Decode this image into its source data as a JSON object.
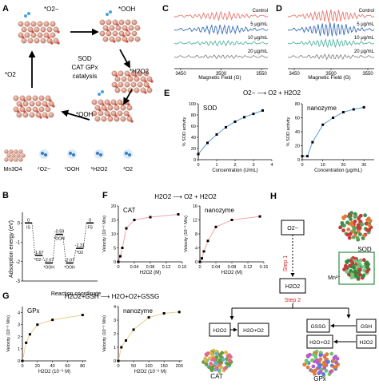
{
  "panels": {
    "A": {
      "letter": "A",
      "labels": [
        "*O2−",
        "*OOH",
        "*H2O2",
        "*OOH",
        "*O2"
      ],
      "center_lines": [
        "SOD",
        "CAT GPx",
        "catalysis"
      ],
      "legend": [
        "Mn3O4",
        "*O2−",
        "*OOH",
        "*H2O2",
        "*O2"
      ]
    },
    "B": {
      "letter": "B",
      "ylabel": "Adsorption energy (eV)",
      "xlabel": "Reaction coordinate",
      "states": [
        {
          "name": "IS",
          "value": "0",
          "energy": 0
        },
        {
          "name": "*O2−",
          "value": "-1.67",
          "energy": -1.67
        },
        {
          "name": "*OOH",
          "value": "-2.07",
          "energy": -2.07
        },
        {
          "name": "*OOH",
          "value": "-0.59",
          "energy": -0.59
        },
        {
          "name": "*OOH",
          "value": "-2.07",
          "energy": -2.07
        },
        {
          "name": "*O2",
          "value": "-1.31",
          "energy": -1.31
        },
        {
          "name": "FS",
          "value": "0",
          "energy": 0
        }
      ],
      "yticks": [
        "0",
        "-1",
        "-2",
        "-3"
      ]
    },
    "C": {
      "letter": "C",
      "traces": [
        {
          "label": "Control",
          "color": "#e8776e"
        },
        {
          "label": "5 μg/mL",
          "color": "#3b6fb6"
        },
        {
          "label": "10 μg/mL",
          "color": "#55b4a0"
        },
        {
          "label": "20 μg/mL",
          "color": "#8a8a8a"
        }
      ],
      "xticks": [
        "3450",
        "3500",
        "3550"
      ],
      "xlabel": "Magnetic Field (G)"
    },
    "D": {
      "letter": "D",
      "traces": [
        {
          "label": "Control",
          "color": "#e8776e"
        },
        {
          "label": "5 μg/mL",
          "color": "#3b6fb6"
        },
        {
          "label": "10 μg/mL",
          "color": "#55b4a0"
        },
        {
          "label": "20 μg/mL",
          "color": "#8a8a8a"
        }
      ],
      "xticks": [
        "3450",
        "3500",
        "3550"
      ],
      "xlabel": "Magnetic Field (G)"
    },
    "E": {
      "letter": "E",
      "reaction": "O2−  ⟶  O2 + H2O2",
      "left_title": "SOD",
      "right_title": "nanozyme",
      "ylabel": "% SOD activity",
      "xlabel": "Concentration (U/mL)",
      "xlabel2": "Concentration (μg/mL)"
    },
    "F": {
      "letter": "F",
      "reaction": "H2O2  ⟶  O2 + H2O2",
      "left_title": "CAT",
      "right_title": "nanozyme",
      "ylabel": "Velocity (10⁻⁶ M/s)",
      "xlabel": "H2O2 (M)"
    },
    "G": {
      "letter": "G",
      "reaction": "H2O2+GSH  ⟶  H2O+O2+GSSG",
      "left_title": "GPx",
      "right_title": "nanozyme",
      "ylabel": "Velocity (10⁻⁶ M/s)",
      "xlabel": "H2O2 (10⁻⁶ M)"
    },
    "H": {
      "letter": "H",
      "top_box": "O2−",
      "step1": "Step 1",
      "middle_box": "H2O2",
      "step2": "Step 2",
      "sod_label": "SOD",
      "mn_label": "Mn²⁺",
      "left_box_a": "H2O2",
      "left_box_b": "H2O+O2",
      "right_box_a": "GSSG",
      "right_box_b": "GSH",
      "right_box_c": "H2O+O2",
      "right_box_d": "H2O2",
      "cat_label": "CAT",
      "gpx_label": "GPx"
    }
  },
  "chart_data": [
    {
      "type": "scatter",
      "title": "SOD",
      "xlabel": "Concentration (U/mL)",
      "ylabel": "% SOD activity",
      "x": [
        0,
        0.5,
        1,
        1.5,
        2,
        2.5,
        3,
        3.5
      ],
      "y": [
        10,
        30,
        45,
        58,
        68,
        76,
        82,
        88
      ],
      "xlim": [
        0,
        4
      ],
      "ylim": [
        0,
        100
      ],
      "xticks": [
        0,
        1,
        2,
        3,
        4
      ],
      "yticks": [
        0,
        20,
        40,
        60,
        80,
        100
      ]
    },
    {
      "type": "scatter",
      "title": "nanozyme",
      "xlabel": "Concentration (μg/mL)",
      "ylabel": "% SOD activity",
      "x": [
        0,
        2.5,
        5,
        10,
        15,
        20,
        25,
        30
      ],
      "y": [
        5,
        5,
        25,
        50,
        60,
        68,
        72,
        75
      ],
      "xlim": [
        0,
        35
      ],
      "ylim": [
        0,
        80
      ],
      "xticks": [
        0,
        10,
        20,
        30
      ],
      "yticks": [
        0,
        20,
        40,
        60,
        80
      ]
    },
    {
      "type": "scatter",
      "title": "CAT",
      "xlabel": "H2O2 (M)",
      "ylabel": "Velocity (10⁻⁶ M/s)",
      "x": [
        0,
        0.005,
        0.01,
        0.02,
        0.04,
        0.08,
        0.15
      ],
      "y": [
        0,
        2,
        5,
        12,
        15,
        16,
        17
      ],
      "xlim": [
        0,
        0.16
      ],
      "ylim": [
        0,
        20
      ],
      "xticks": [
        0,
        0.04,
        0.08,
        0.12,
        0.16
      ],
      "yticks": [
        0,
        5,
        10,
        15,
        20
      ]
    },
    {
      "type": "scatter",
      "title": "nanozyme",
      "xlabel": "H2O2 (M)",
      "ylabel": "Velocity (10⁻⁶ M/s)",
      "x": [
        0,
        0.005,
        0.01,
        0.02,
        0.04,
        0.08,
        0.15
      ],
      "y": [
        0,
        1,
        3,
        6,
        10,
        12,
        13
      ],
      "xlim": [
        0,
        0.16
      ],
      "ylim": [
        0,
        16
      ],
      "xticks": [
        0,
        0.04,
        0.08,
        0.12,
        0.16
      ],
      "yticks": [
        0,
        4,
        8,
        12,
        16
      ]
    },
    {
      "type": "scatter",
      "title": "GPx",
      "xlabel": "H2O2 (10⁻⁶ M)",
      "ylabel": "Velocity (10⁻⁶ M/s)",
      "x": [
        0,
        5,
        10,
        20,
        40,
        80
      ],
      "y": [
        0,
        1.5,
        2.2,
        3,
        3.4,
        3.8
      ],
      "xlim": [
        0,
        85
      ],
      "ylim": [
        0,
        4.5
      ],
      "xticks": [
        0,
        20,
        40,
        60,
        80
      ],
      "yticks": [
        0,
        1,
        2,
        3,
        4
      ]
    },
    {
      "type": "scatter",
      "title": "nanozyme",
      "xlabel": "H2O2 (10⁻⁶ M)",
      "ylabel": "Velocity (10⁻⁶ M/s)",
      "x": [
        0,
        10,
        25,
        50,
        100,
        150,
        200
      ],
      "y": [
        0,
        1,
        1.5,
        2.3,
        3.2,
        3.5,
        3.6
      ],
      "xlim": [
        0,
        210
      ],
      "ylim": [
        0,
        4
      ],
      "xticks": [
        0,
        50,
        100,
        150,
        200
      ],
      "yticks": [
        0,
        1,
        2,
        3,
        4
      ]
    }
  ]
}
